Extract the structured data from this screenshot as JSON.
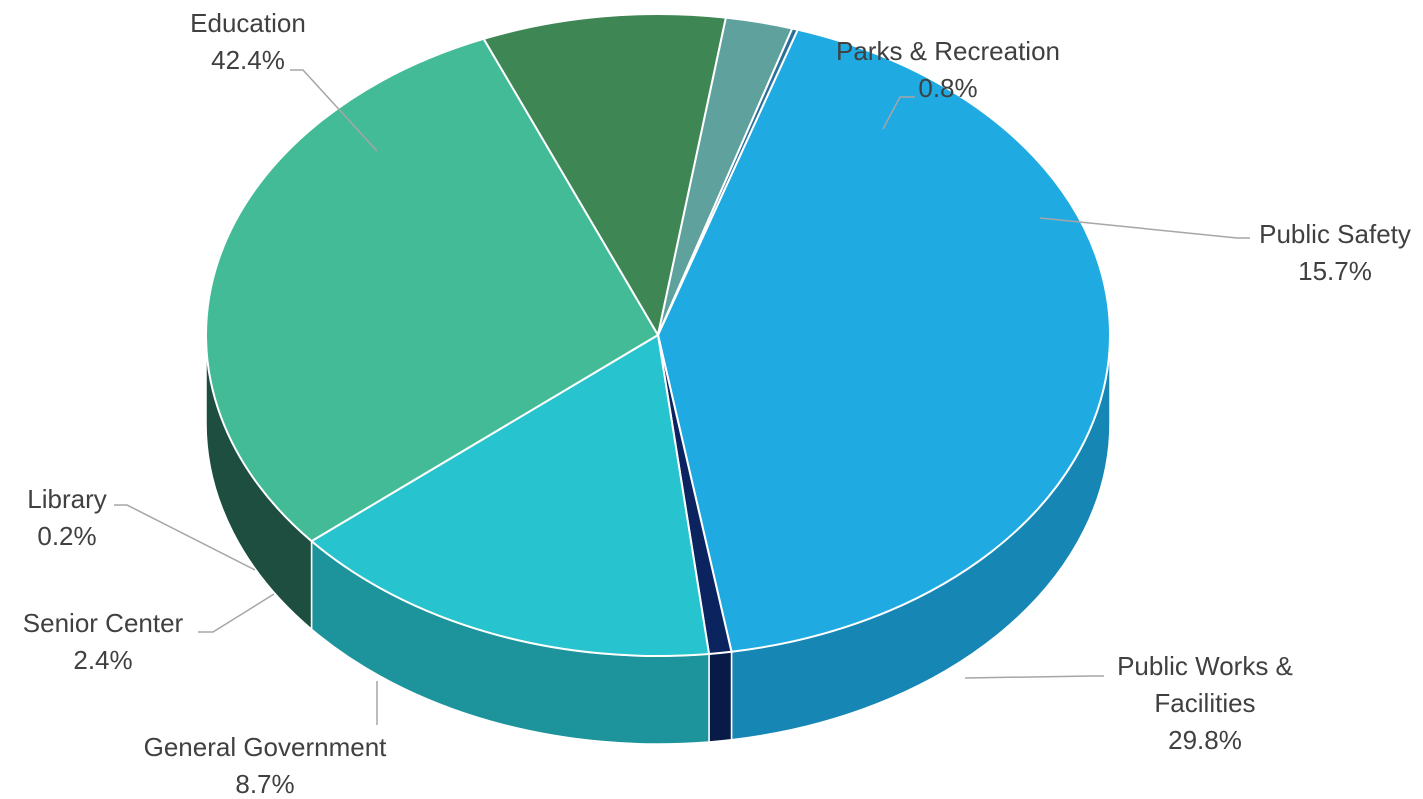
{
  "chart_data": {
    "type": "pie",
    "style": "3d",
    "labels": [
      "Education",
      "Parks & Recreation",
      "Public Safety",
      "Public Works & Facilities",
      "General Government",
      "Senior Center",
      "Library"
    ],
    "label_lines": [
      [
        "Education"
      ],
      [
        "Parks & Recreation"
      ],
      [
        "Public Safety"
      ],
      [
        "Public Works &",
        "Facilities"
      ],
      [
        "General Government"
      ],
      [
        "Senior Center"
      ],
      [
        "Library"
      ]
    ],
    "values": [
      42.4,
      0.8,
      15.7,
      29.8,
      8.7,
      2.4,
      0.2
    ],
    "value_labels": [
      "42.4%",
      "0.8%",
      "15.7%",
      "29.8%",
      "8.7%",
      "2.4%",
      "0.2%"
    ],
    "colors": [
      "#1fabe2",
      "#0b2460",
      "#27c3cf",
      "#43bb97",
      "#3f8655",
      "#5fa29d",
      "#2a6f9a"
    ],
    "side_colors": [
      "#1687b5",
      "#081a46",
      "#1d939c",
      "#1e4e3f",
      "#2b5b36",
      "#3f7771",
      "#1f527a"
    ],
    "legend": "none",
    "title": ""
  }
}
